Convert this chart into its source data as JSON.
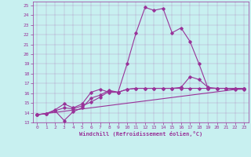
{
  "xlabel": "Windchill (Refroidissement éolien,°C)",
  "bg_color": "#c8f0f0",
  "line_color": "#993399",
  "xlim": [
    -0.5,
    23.5
  ],
  "ylim": [
    13,
    25.4
  ],
  "xticks": [
    0,
    1,
    2,
    3,
    4,
    5,
    6,
    7,
    8,
    9,
    10,
    11,
    12,
    13,
    14,
    15,
    16,
    17,
    18,
    19,
    20,
    21,
    22,
    23
  ],
  "yticks": [
    13,
    14,
    15,
    16,
    17,
    18,
    19,
    20,
    21,
    22,
    23,
    24,
    25
  ],
  "lines": [
    {
      "x": [
        0,
        23
      ],
      "y": [
        13.8,
        16.5
      ]
    },
    {
      "x": [
        0,
        1,
        2,
        3,
        4,
        5,
        6,
        7,
        8,
        9,
        10,
        11,
        12,
        13,
        14,
        15,
        16,
        17,
        18,
        19,
        20,
        21,
        22,
        23
      ],
      "y": [
        13.8,
        13.9,
        14.2,
        13.2,
        14.1,
        14.5,
        15.5,
        15.8,
        16.3,
        16.1,
        19.0,
        22.2,
        24.8,
        24.5,
        24.7,
        22.2,
        22.7,
        21.3,
        19.0,
        16.5,
        16.5,
        16.5,
        16.4,
        16.4
      ]
    },
    {
      "x": [
        0,
        1,
        2,
        3,
        4,
        5,
        6,
        7,
        8,
        9,
        10,
        11,
        12,
        13,
        14,
        15,
        16,
        17,
        18,
        19,
        20,
        21,
        22,
        23
      ],
      "y": [
        13.8,
        13.9,
        14.2,
        14.5,
        14.4,
        14.7,
        15.1,
        15.6,
        16.2,
        16.1,
        16.4,
        16.5,
        16.5,
        16.5,
        16.5,
        16.5,
        16.6,
        17.7,
        17.4,
        16.6,
        16.5,
        16.5,
        16.5,
        16.5
      ]
    },
    {
      "x": [
        0,
        1,
        2,
        3,
        4,
        5,
        6,
        7,
        8,
        9,
        10,
        11,
        12,
        13,
        14,
        15,
        16,
        17,
        18,
        19,
        20,
        21,
        22,
        23
      ],
      "y": [
        13.8,
        13.9,
        14.3,
        14.9,
        14.5,
        14.9,
        16.1,
        16.4,
        16.1,
        16.1,
        16.4,
        16.5,
        16.5,
        16.5,
        16.5,
        16.5,
        16.5,
        16.5,
        16.5,
        16.5,
        16.5,
        16.5,
        16.5,
        16.5
      ]
    }
  ]
}
